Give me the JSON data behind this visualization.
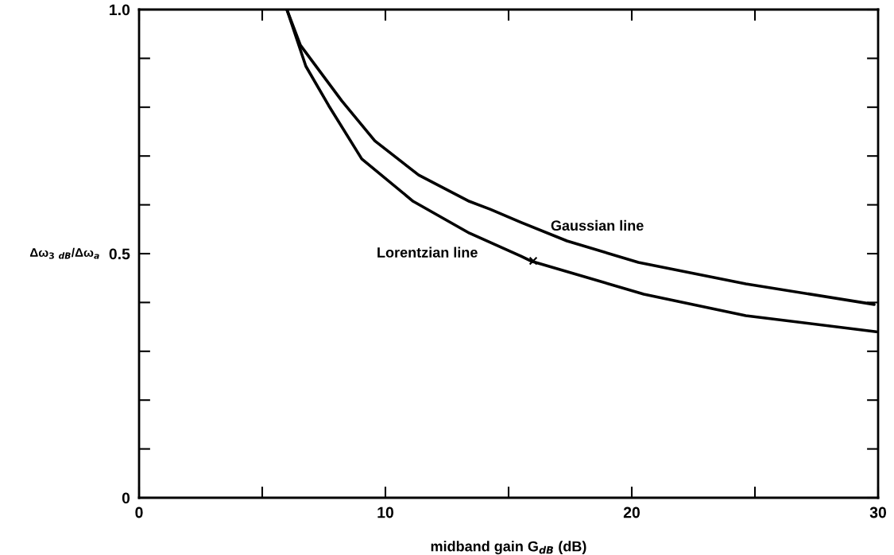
{
  "chart_data": {
    "type": "line",
    "xlabel": "midband gain G$_{dB}$ (dB)",
    "ylabel": "Δω$_{3}$ $_{dB}$/Δω$_{a}$",
    "xlim": [
      0,
      30
    ],
    "ylim": [
      0,
      1
    ],
    "xticks": [
      0,
      {
        "value": 5,
        "label": null
      },
      10,
      {
        "value": 15,
        "label": null
      },
      20,
      {
        "value": 25,
        "label": null
      },
      30
    ],
    "yticks": [
      0,
      {
        "value": 0.1,
        "label": null
      },
      {
        "value": 0.2,
        "label": null
      },
      {
        "value": 0.3,
        "label": null
      },
      {
        "value": 0.4,
        "label": null
      },
      0.5,
      {
        "value": 0.6,
        "label": null
      },
      {
        "value": 0.7,
        "label": null
      },
      {
        "value": 0.8,
        "label": null
      },
      {
        "value": 0.9,
        "label": null
      },
      {
        "value": 1,
        "label": "1.0"
      }
    ],
    "grid": false,
    "marker": "none",
    "line_style": "solid",
    "series": [
      {
        "color": "#000000",
        "x": [
          6,
          6.55,
          8.23,
          9.57,
          11.35,
          13.41,
          14.25,
          15.5,
          17.37,
          20.27,
          24.63,
          29.84
        ],
        "values": [
          1,
          0.927,
          0.813,
          0.731,
          0.661,
          0.607,
          0.591,
          0.564,
          0.526,
          0.482,
          0.438,
          0.396
        ]
      },
      {
        "color": "#000000",
        "x": [
          6,
          6.77,
          7.7,
          9.04,
          11.13,
          13.41,
          15.5,
          15.9,
          20.49,
          24.63,
          29.93
        ],
        "values": [
          1,
          0.884,
          0.803,
          0.694,
          0.607,
          0.542,
          0.495,
          0.485,
          0.417,
          0.373,
          0.34
        ]
      },
      {
        "type": "scatter",
        "marker": "cross",
        "color": "#000000",
        "x": [
          16
        ],
        "values": [
          0.485
        ]
      }
    ],
    "annotations": [
      "Gaussian line",
      "Lorentzian line"
    ]
  }
}
